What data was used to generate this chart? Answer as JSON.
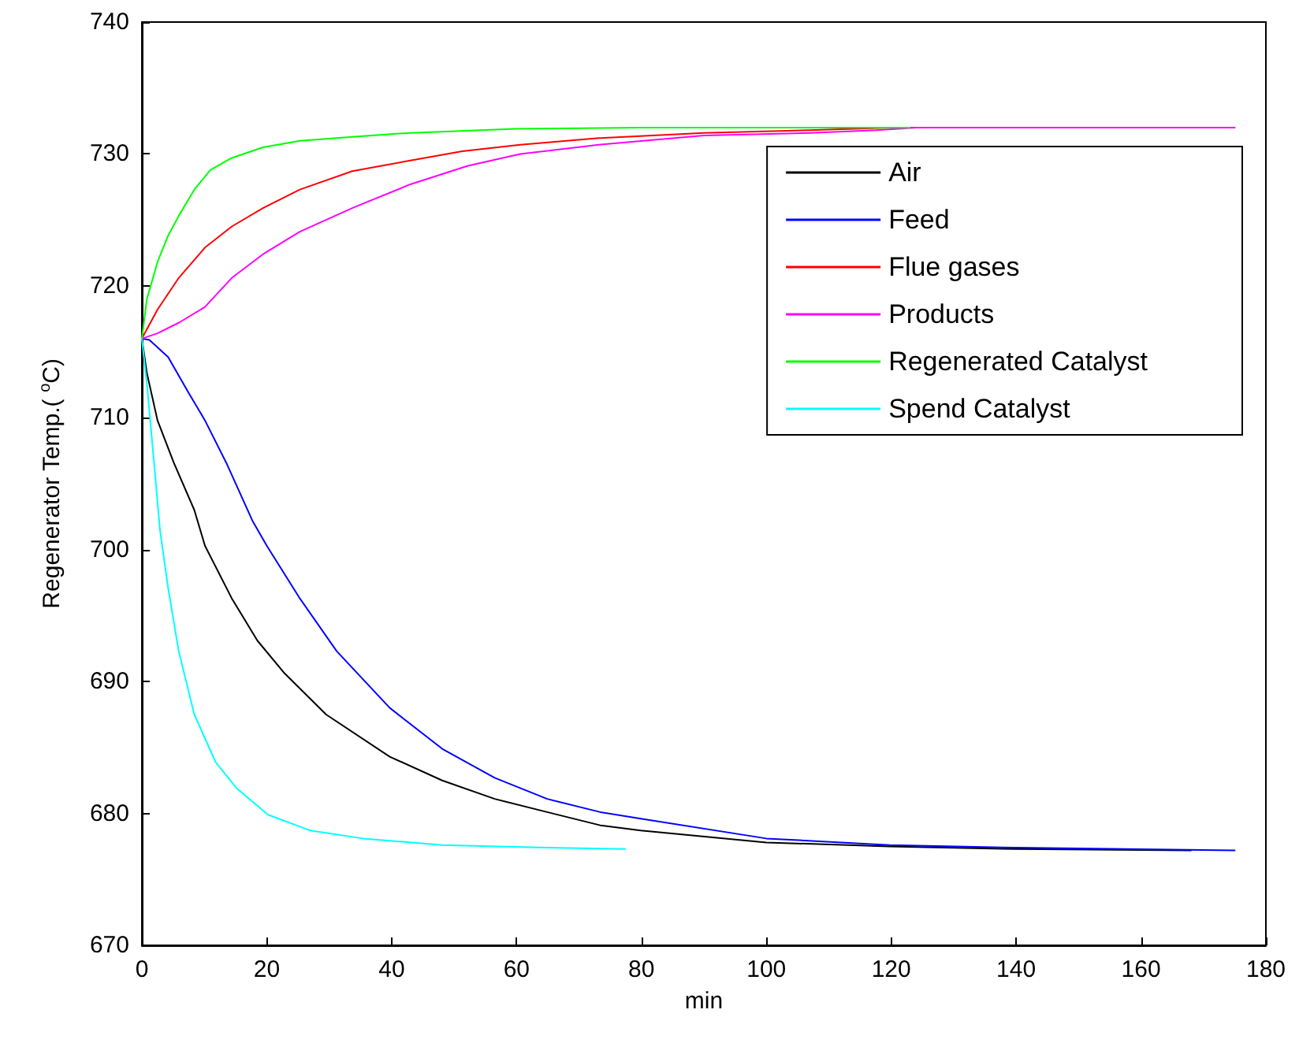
{
  "chart_data": {
    "type": "line",
    "xlabel": "min",
    "ylabel": "Regenerator Temp.( $^{o}$C)",
    "xlim": [
      0,
      180
    ],
    "xticks": [
      0,
      20,
      40,
      60,
      80,
      100,
      120,
      140,
      160,
      180
    ],
    "ylim": [
      670,
      740
    ],
    "yticks": [
      670,
      680,
      690,
      700,
      710,
      720,
      730,
      740
    ],
    "grid": false,
    "legend": "top right",
    "marker": "none",
    "line_style": "solid",
    "series": [
      {
        "name": "Air",
        "color": "#000000",
        "x": [
          0,
          0.8,
          2.5,
          5.1,
          8.4,
          10.1,
          14.4,
          18.5,
          22.7,
          29.5,
          39.7,
          48.1,
          56.5,
          64.9,
          73.4,
          79.9,
          100,
          119.7,
          139.9,
          168
        ],
        "values": [
          716,
          713.4,
          709.8,
          706.6,
          703.0,
          700.3,
          696.3,
          693.1,
          690.7,
          687.5,
          684.3,
          682.5,
          681.1,
          680.1,
          679.1,
          678.7,
          677.8,
          677.5,
          677.3,
          677.2
        ]
      },
      {
        "name": "Feed",
        "color": "#0000ff",
        "x": [
          0,
          1.2,
          4.2,
          7.6,
          10.1,
          13.5,
          17.7,
          20,
          25.3,
          31.2,
          39.7,
          48.1,
          56.5,
          64.9,
          73.4,
          79.9,
          100,
          119.7,
          139.9,
          175
        ],
        "values": [
          716,
          715.9,
          714.6,
          711.8,
          709.8,
          706.6,
          702.2,
          700.3,
          696.3,
          692.3,
          688.0,
          684.9,
          682.7,
          681.1,
          680.1,
          679.6,
          678.1,
          677.6,
          677.4,
          677.2
        ]
      },
      {
        "name": "Flue gases",
        "color": "#ff0000",
        "x": [
          0,
          2.5,
          5.9,
          10.1,
          14.4,
          19.4,
          25.3,
          33.7,
          43,
          51.3,
          60.6,
          73.2,
          90,
          107,
          120,
          175
        ],
        "values": [
          716,
          718.2,
          720.6,
          722.9,
          724.5,
          725.9,
          727.3,
          728.7,
          729.5,
          730.2,
          730.7,
          731.2,
          731.6,
          731.8,
          732,
          732
        ]
      },
      {
        "name": "Products",
        "color": "#ff00ff",
        "x": [
          0,
          2.5,
          5.9,
          10.1,
          14.4,
          19.4,
          25.3,
          33.7,
          43,
          52.2,
          60.6,
          73.2,
          90,
          107,
          117.6,
          124,
          175
        ],
        "values": [
          716,
          716.4,
          717.2,
          718.4,
          720.6,
          722.4,
          724.1,
          725.9,
          727.7,
          729.1,
          730.0,
          730.7,
          731.4,
          731.6,
          731.8,
          732,
          732
        ]
      },
      {
        "name": "Regenerated Catalyst",
        "color": "#00ff00",
        "x": [
          0,
          0.8,
          2.5,
          4.2,
          5.9,
          8.4,
          11,
          14.4,
          19.4,
          25.3,
          33.7,
          43,
          59.9,
          80,
          123
        ],
        "values": [
          716,
          719.0,
          721.8,
          723.8,
          725.3,
          727.3,
          728.8,
          729.7,
          730.5,
          731.0,
          731.3,
          731.6,
          731.9,
          732,
          732
        ]
      },
      {
        "name": "Spend Catalyst",
        "color": "#00ffff",
        "x": [
          0,
          0.8,
          2.1,
          2.9,
          4.2,
          5.9,
          8.4,
          11.8,
          15.2,
          20.2,
          27,
          35.4,
          48.1,
          64.9,
          77.4
        ],
        "values": [
          716,
          712.6,
          705.8,
          701.5,
          697.1,
          692.3,
          687.5,
          683.9,
          681.9,
          679.9,
          678.7,
          678.1,
          677.6,
          677.4,
          677.3
        ]
      }
    ]
  }
}
